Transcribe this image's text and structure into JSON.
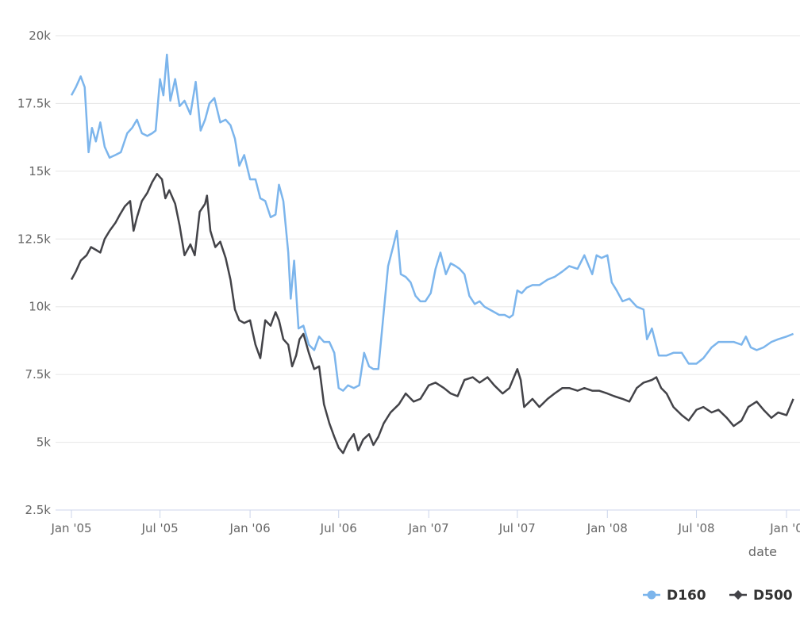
{
  "chart_data": {
    "type": "line",
    "xlabel": "date",
    "ylabel": "",
    "ylim": [
      2500,
      20000
    ],
    "yticks": [
      2500,
      5000,
      7500,
      10000,
      12500,
      15000,
      17500,
      20000
    ],
    "ytick_labels": [
      "2.5k",
      "5k",
      "7.5k",
      "10k",
      "12.5k",
      "15k",
      "17.5k",
      "20k"
    ],
    "xlim": [
      "2005-01-01",
      "2009-01-15"
    ],
    "xticks": [
      "2005-01-01",
      "2005-07-01",
      "2006-01-01",
      "2006-07-01",
      "2007-01-01",
      "2007-07-01",
      "2008-01-01",
      "2008-07-01",
      "2009-01-01"
    ],
    "xtick_labels": [
      "Jan '05",
      "Jul '05",
      "Jan '06",
      "Jul '06",
      "Jan '07",
      "Jul '07",
      "Jan '08",
      "Jul '08",
      "Jan '0"
    ],
    "grid": "horizontal",
    "legend_position": "bottom-right",
    "series": [
      {
        "name": "D160",
        "color": "#7cb5ec",
        "marker": "circle",
        "points": [
          [
            "2005-01-01",
            17800
          ],
          [
            "2005-01-10",
            18100
          ],
          [
            "2005-01-20",
            18500
          ],
          [
            "2005-01-28",
            18100
          ],
          [
            "2005-02-05",
            15700
          ],
          [
            "2005-02-12",
            16600
          ],
          [
            "2005-02-20",
            16100
          ],
          [
            "2005-03-01",
            16800
          ],
          [
            "2005-03-10",
            15900
          ],
          [
            "2005-03-20",
            15500
          ],
          [
            "2005-04-01",
            15600
          ],
          [
            "2005-04-12",
            15700
          ],
          [
            "2005-04-25",
            16400
          ],
          [
            "2005-05-05",
            16600
          ],
          [
            "2005-05-15",
            16900
          ],
          [
            "2005-05-25",
            16400
          ],
          [
            "2005-06-05",
            16300
          ],
          [
            "2005-06-15",
            16400
          ],
          [
            "2005-06-22",
            16500
          ],
          [
            "2005-07-01",
            18400
          ],
          [
            "2005-07-08",
            17800
          ],
          [
            "2005-07-15",
            19300
          ],
          [
            "2005-07-22",
            17600
          ],
          [
            "2005-08-01",
            18400
          ],
          [
            "2005-08-10",
            17400
          ],
          [
            "2005-08-20",
            17600
          ],
          [
            "2005-09-01",
            17100
          ],
          [
            "2005-09-12",
            18300
          ],
          [
            "2005-09-22",
            16500
          ],
          [
            "2005-10-01",
            16900
          ],
          [
            "2005-10-10",
            17500
          ],
          [
            "2005-10-20",
            17700
          ],
          [
            "2005-11-01",
            16800
          ],
          [
            "2005-11-12",
            16900
          ],
          [
            "2005-11-22",
            16700
          ],
          [
            "2005-12-01",
            16200
          ],
          [
            "2005-12-10",
            15200
          ],
          [
            "2005-12-20",
            15600
          ],
          [
            "2006-01-01",
            14700
          ],
          [
            "2006-01-12",
            14700
          ],
          [
            "2006-01-22",
            14000
          ],
          [
            "2006-02-01",
            13900
          ],
          [
            "2006-02-12",
            13300
          ],
          [
            "2006-02-22",
            13400
          ],
          [
            "2006-03-01",
            14500
          ],
          [
            "2006-03-10",
            13900
          ],
          [
            "2006-03-20",
            12000
          ],
          [
            "2006-03-25",
            10300
          ],
          [
            "2006-04-01",
            11700
          ],
          [
            "2006-04-10",
            9200
          ],
          [
            "2006-04-20",
            9300
          ],
          [
            "2006-05-01",
            8600
          ],
          [
            "2006-05-12",
            8400
          ],
          [
            "2006-05-22",
            8900
          ],
          [
            "2006-06-01",
            8700
          ],
          [
            "2006-06-12",
            8700
          ],
          [
            "2006-06-22",
            8300
          ],
          [
            "2006-07-01",
            7000
          ],
          [
            "2006-07-10",
            6900
          ],
          [
            "2006-07-20",
            7100
          ],
          [
            "2006-08-01",
            7000
          ],
          [
            "2006-08-12",
            7100
          ],
          [
            "2006-08-22",
            8300
          ],
          [
            "2006-09-01",
            7800
          ],
          [
            "2006-09-10",
            7700
          ],
          [
            "2006-09-20",
            7700
          ],
          [
            "2006-10-01",
            9800
          ],
          [
            "2006-10-10",
            11500
          ],
          [
            "2006-10-20",
            12200
          ],
          [
            "2006-10-28",
            12800
          ],
          [
            "2006-11-05",
            11200
          ],
          [
            "2006-11-15",
            11100
          ],
          [
            "2006-11-25",
            10900
          ],
          [
            "2006-12-05",
            10400
          ],
          [
            "2006-12-15",
            10200
          ],
          [
            "2006-12-25",
            10200
          ],
          [
            "2007-01-05",
            10500
          ],
          [
            "2007-01-15",
            11400
          ],
          [
            "2007-01-25",
            12000
          ],
          [
            "2007-02-05",
            11200
          ],
          [
            "2007-02-15",
            11600
          ],
          [
            "2007-02-25",
            11500
          ],
          [
            "2007-03-05",
            11400
          ],
          [
            "2007-03-15",
            11200
          ],
          [
            "2007-03-25",
            10400
          ],
          [
            "2007-04-05",
            10100
          ],
          [
            "2007-04-15",
            10200
          ],
          [
            "2007-04-25",
            10000
          ],
          [
            "2007-05-05",
            9900
          ],
          [
            "2007-05-15",
            9800
          ],
          [
            "2007-05-25",
            9700
          ],
          [
            "2007-06-05",
            9700
          ],
          [
            "2007-06-15",
            9600
          ],
          [
            "2007-06-22",
            9700
          ],
          [
            "2007-07-01",
            10600
          ],
          [
            "2007-07-10",
            10500
          ],
          [
            "2007-07-20",
            10700
          ],
          [
            "2007-08-01",
            10800
          ],
          [
            "2007-08-15",
            10800
          ],
          [
            "2007-09-01",
            11000
          ],
          [
            "2007-09-15",
            11100
          ],
          [
            "2007-10-01",
            11300
          ],
          [
            "2007-10-15",
            11500
          ],
          [
            "2007-11-01",
            11400
          ],
          [
            "2007-11-15",
            11900
          ],
          [
            "2007-12-01",
            11200
          ],
          [
            "2007-12-10",
            11900
          ],
          [
            "2007-12-20",
            11800
          ],
          [
            "2008-01-01",
            11900
          ],
          [
            "2008-01-10",
            10900
          ],
          [
            "2008-01-20",
            10600
          ],
          [
            "2008-02-01",
            10200
          ],
          [
            "2008-02-15",
            10300
          ],
          [
            "2008-03-01",
            10000
          ],
          [
            "2008-03-15",
            9900
          ],
          [
            "2008-03-22",
            8800
          ],
          [
            "2008-04-01",
            9200
          ],
          [
            "2008-04-15",
            8200
          ],
          [
            "2008-05-01",
            8200
          ],
          [
            "2008-05-15",
            8300
          ],
          [
            "2008-06-01",
            8300
          ],
          [
            "2008-06-15",
            7900
          ],
          [
            "2008-07-01",
            7900
          ],
          [
            "2008-07-15",
            8100
          ],
          [
            "2008-08-01",
            8500
          ],
          [
            "2008-08-15",
            8700
          ],
          [
            "2008-09-01",
            8700
          ],
          [
            "2008-09-15",
            8700
          ],
          [
            "2008-10-01",
            8600
          ],
          [
            "2008-10-10",
            8900
          ],
          [
            "2008-10-20",
            8500
          ],
          [
            "2008-11-01",
            8400
          ],
          [
            "2008-11-15",
            8500
          ],
          [
            "2008-12-01",
            8700
          ],
          [
            "2008-12-15",
            8800
          ],
          [
            "2009-01-01",
            8900
          ],
          [
            "2009-01-15",
            9000
          ]
        ]
      },
      {
        "name": "D500",
        "color": "#434348",
        "marker": "diamond",
        "points": [
          [
            "2005-01-01",
            11000
          ],
          [
            "2005-01-10",
            11300
          ],
          [
            "2005-01-20",
            11700
          ],
          [
            "2005-02-01",
            11900
          ],
          [
            "2005-02-10",
            12200
          ],
          [
            "2005-02-20",
            12100
          ],
          [
            "2005-03-01",
            12000
          ],
          [
            "2005-03-10",
            12500
          ],
          [
            "2005-03-20",
            12800
          ],
          [
            "2005-04-01",
            13100
          ],
          [
            "2005-04-10",
            13400
          ],
          [
            "2005-04-20",
            13700
          ],
          [
            "2005-05-01",
            13900
          ],
          [
            "2005-05-08",
            12800
          ],
          [
            "2005-05-15",
            13300
          ],
          [
            "2005-05-25",
            13900
          ],
          [
            "2005-06-05",
            14200
          ],
          [
            "2005-06-15",
            14600
          ],
          [
            "2005-06-25",
            14900
          ],
          [
            "2005-07-05",
            14700
          ],
          [
            "2005-07-12",
            14000
          ],
          [
            "2005-07-20",
            14300
          ],
          [
            "2005-08-01",
            13800
          ],
          [
            "2005-08-10",
            13000
          ],
          [
            "2005-08-20",
            11900
          ],
          [
            "2005-09-01",
            12300
          ],
          [
            "2005-09-10",
            11900
          ],
          [
            "2005-09-20",
            13500
          ],
          [
            "2005-10-01",
            13800
          ],
          [
            "2005-10-05",
            14100
          ],
          [
            "2005-10-12",
            12800
          ],
          [
            "2005-10-22",
            12200
          ],
          [
            "2005-11-01",
            12400
          ],
          [
            "2005-11-12",
            11800
          ],
          [
            "2005-11-22",
            11000
          ],
          [
            "2005-12-01",
            9900
          ],
          [
            "2005-12-10",
            9500
          ],
          [
            "2005-12-20",
            9400
          ],
          [
            "2006-01-01",
            9500
          ],
          [
            "2006-01-12",
            8600
          ],
          [
            "2006-01-22",
            8100
          ],
          [
            "2006-02-01",
            9500
          ],
          [
            "2006-02-12",
            9300
          ],
          [
            "2006-02-22",
            9800
          ],
          [
            "2006-03-01",
            9500
          ],
          [
            "2006-03-10",
            8800
          ],
          [
            "2006-03-20",
            8600
          ],
          [
            "2006-03-28",
            7800
          ],
          [
            "2006-04-05",
            8200
          ],
          [
            "2006-04-12",
            8800
          ],
          [
            "2006-04-20",
            9000
          ],
          [
            "2006-05-01",
            8300
          ],
          [
            "2006-05-12",
            7700
          ],
          [
            "2006-05-22",
            7800
          ],
          [
            "2006-06-01",
            6400
          ],
          [
            "2006-06-12",
            5700
          ],
          [
            "2006-06-22",
            5200
          ],
          [
            "2006-07-01",
            4800
          ],
          [
            "2006-07-10",
            4600
          ],
          [
            "2006-07-20",
            5000
          ],
          [
            "2006-08-01",
            5300
          ],
          [
            "2006-08-10",
            4700
          ],
          [
            "2006-08-20",
            5100
          ],
          [
            "2006-09-01",
            5300
          ],
          [
            "2006-09-10",
            4900
          ],
          [
            "2006-09-20",
            5200
          ],
          [
            "2006-10-01",
            5700
          ],
          [
            "2006-10-15",
            6100
          ],
          [
            "2006-11-01",
            6400
          ],
          [
            "2006-11-15",
            6800
          ],
          [
            "2006-12-01",
            6500
          ],
          [
            "2006-12-15",
            6600
          ],
          [
            "2007-01-01",
            7100
          ],
          [
            "2007-01-15",
            7200
          ],
          [
            "2007-02-01",
            7000
          ],
          [
            "2007-02-15",
            6800
          ],
          [
            "2007-03-01",
            6700
          ],
          [
            "2007-03-15",
            7300
          ],
          [
            "2007-04-01",
            7400
          ],
          [
            "2007-04-15",
            7200
          ],
          [
            "2007-05-01",
            7400
          ],
          [
            "2007-05-15",
            7100
          ],
          [
            "2007-06-01",
            6800
          ],
          [
            "2007-06-15",
            7000
          ],
          [
            "2007-07-01",
            7700
          ],
          [
            "2007-07-08",
            7300
          ],
          [
            "2007-07-15",
            6300
          ],
          [
            "2007-08-01",
            6600
          ],
          [
            "2007-08-15",
            6300
          ],
          [
            "2007-09-01",
            6600
          ],
          [
            "2007-09-15",
            6800
          ],
          [
            "2007-10-01",
            7000
          ],
          [
            "2007-10-15",
            7000
          ],
          [
            "2007-11-01",
            6900
          ],
          [
            "2007-11-15",
            7000
          ],
          [
            "2007-12-01",
            6900
          ],
          [
            "2007-12-15",
            6900
          ],
          [
            "2008-01-01",
            6800
          ],
          [
            "2008-01-15",
            6700
          ],
          [
            "2008-02-01",
            6600
          ],
          [
            "2008-02-15",
            6500
          ],
          [
            "2008-03-01",
            7000
          ],
          [
            "2008-03-15",
            7200
          ],
          [
            "2008-04-01",
            7300
          ],
          [
            "2008-04-10",
            7400
          ],
          [
            "2008-04-20",
            7000
          ],
          [
            "2008-05-01",
            6800
          ],
          [
            "2008-05-15",
            6300
          ],
          [
            "2008-06-01",
            6000
          ],
          [
            "2008-06-15",
            5800
          ],
          [
            "2008-07-01",
            6200
          ],
          [
            "2008-07-15",
            6300
          ],
          [
            "2008-08-01",
            6100
          ],
          [
            "2008-08-15",
            6200
          ],
          [
            "2008-09-01",
            5900
          ],
          [
            "2008-09-15",
            5600
          ],
          [
            "2008-10-01",
            5800
          ],
          [
            "2008-10-15",
            6300
          ],
          [
            "2008-11-01",
            6500
          ],
          [
            "2008-11-15",
            6200
          ],
          [
            "2008-12-01",
            5900
          ],
          [
            "2008-12-15",
            6100
          ],
          [
            "2009-01-01",
            6000
          ],
          [
            "2009-01-15",
            6600
          ]
        ]
      }
    ]
  }
}
